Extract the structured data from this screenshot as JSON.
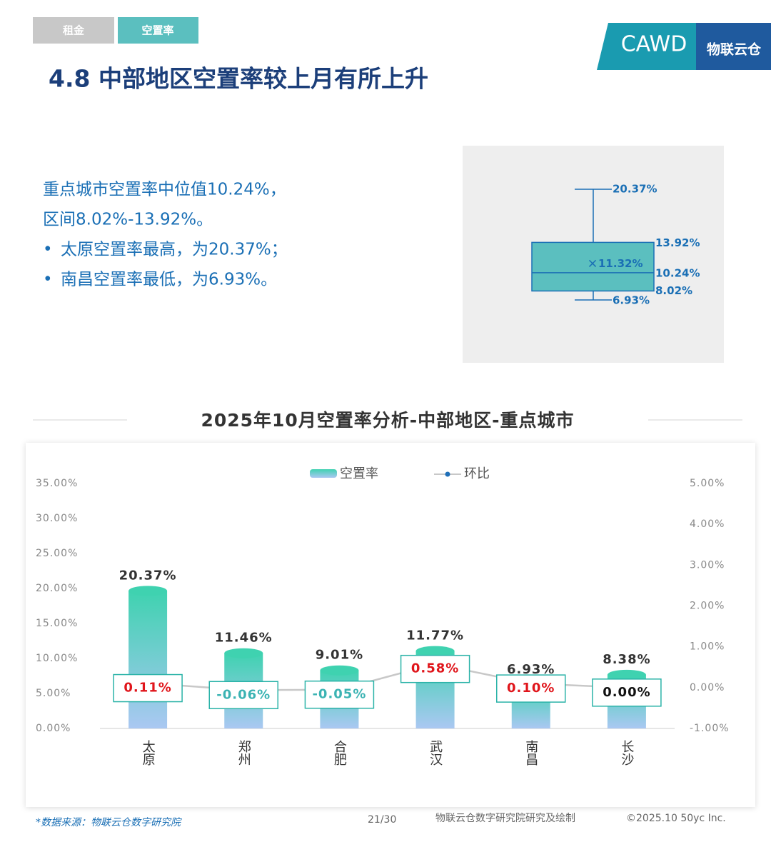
{
  "tabs": [
    "租金",
    "空置率"
  ],
  "logo": [
    "CAWD",
    "物联云仓"
  ],
  "title": "4.8 中部地区空置率较上月有所上升",
  "summary": [
    "重点城市空置率中位值10.24%，",
    "区间8.02%-13.92%。"
  ],
  "bullets": [
    "太原空置率最高，为20.37%；",
    "南昌空置率最低，为6.93%。"
  ],
  "chart_data": [
    {
      "type": "box",
      "color": "#5bbfbf",
      "stats": {
        "min": 6.93,
        "q1": 8.02,
        "median": 10.24,
        "mean": 11.32,
        "q3": 13.92,
        "max": 20.37
      },
      "stat_labels": {
        "min": "6.93%",
        "q1": "8.02%",
        "median": "10.24%",
        "mean": "11.32%",
        "q3": "13.92%",
        "max": "20.37%"
      }
    },
    {
      "type": "bar",
      "title": "2025年10月空置率分析-中部地区-重点城市",
      "categories": [
        "太原",
        "郑州",
        "合肥",
        "武汉",
        "南昌",
        "长沙"
      ],
      "series": [
        {
          "name": "空置率",
          "color": "#3fd2b0",
          "values": [
            20.37,
            11.46,
            9.01,
            11.77,
            6.93,
            8.38
          ],
          "value_labels": [
            "20.37%",
            "11.46%",
            "9.01%",
            "11.77%",
            "6.93%",
            "8.38%"
          ]
        },
        {
          "name": "环比",
          "type": "line",
          "axis": "y2",
          "color": "#c8c8c8",
          "marker_color": "#1f6fb8",
          "values": [
            0.11,
            -0.06,
            -0.05,
            0.58,
            0.1,
            0.0
          ],
          "value_labels": [
            "0.11%",
            "-0.06%",
            "-0.05%",
            "0.58%",
            "0.10%",
            "0.00%"
          ]
        }
      ],
      "ylim": [
        0,
        35
      ],
      "yticks": [
        {
          "value": 0,
          "label": "0.00%"
        },
        {
          "value": 5,
          "label": "5.00%"
        },
        {
          "value": 10,
          "label": "10.00%"
        },
        {
          "value": 15,
          "label": "15.00%"
        },
        {
          "value": 20,
          "label": "20.00%"
        },
        {
          "value": 25,
          "label": "25.00%"
        },
        {
          "value": 30,
          "label": "30.00%"
        },
        {
          "value": 35,
          "label": "35.00%"
        }
      ],
      "y2lim": [
        -1,
        5
      ],
      "y2ticks": [
        {
          "value": -1,
          "label": "-1.00%"
        },
        {
          "value": 0,
          "label": "0.00%"
        },
        {
          "value": 1,
          "label": "1.00%"
        },
        {
          "value": 2,
          "label": "2.00%"
        },
        {
          "value": 3,
          "label": "3.00%"
        },
        {
          "value": 4,
          "label": "4.00%"
        },
        {
          "value": 5,
          "label": "5.00%"
        }
      ],
      "legend": "top"
    }
  ],
  "footer": {
    "source": "*数据来源：物联云仓数字研究院",
    "page": "21/30",
    "credit": "物联云仓数字研究院研究及绘制",
    "copyright": "©2025.10 50yc Inc."
  }
}
